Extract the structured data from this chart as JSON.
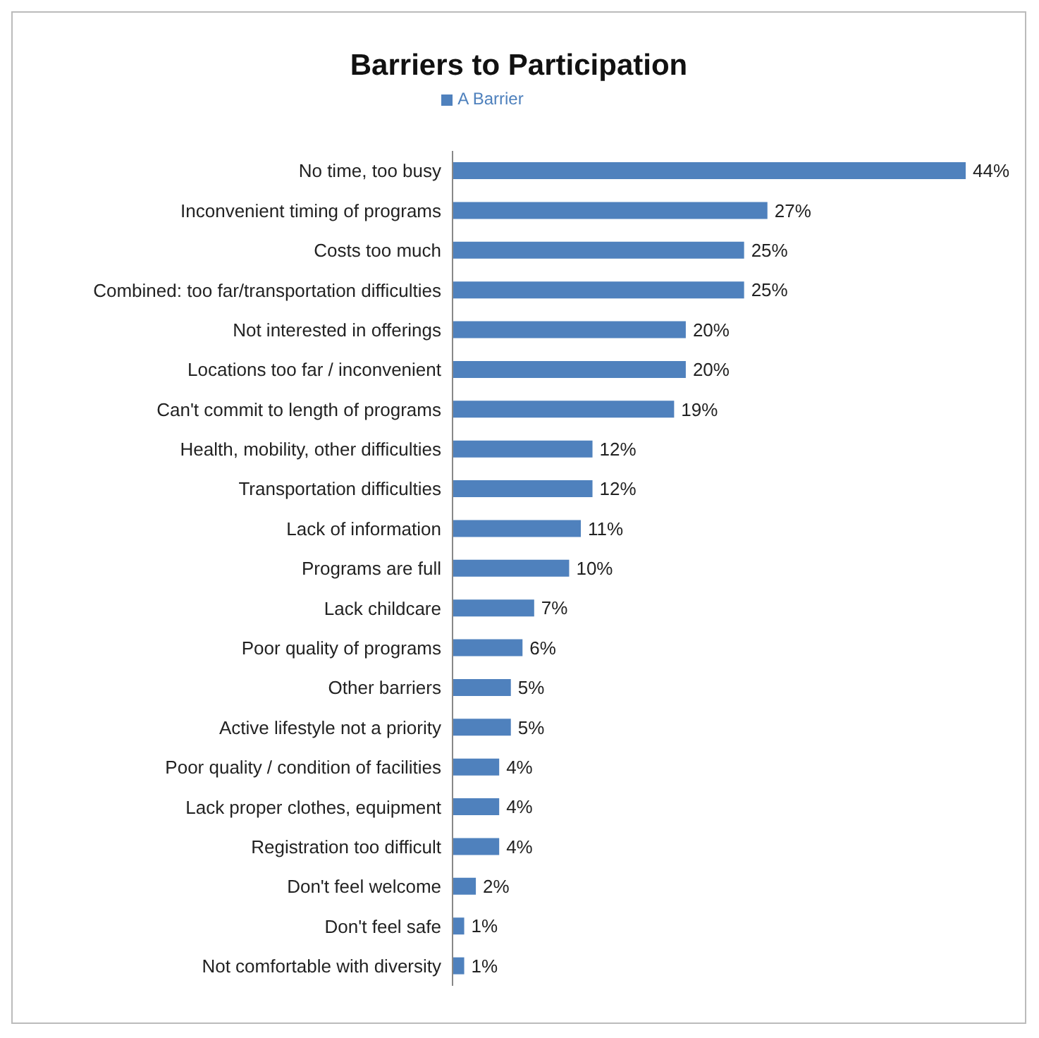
{
  "chart_data": {
    "type": "bar",
    "orientation": "horizontal",
    "title": "Barriers to Participation",
    "legend": "top",
    "categories": [
      "No time, too busy",
      "Inconvenient timing of programs",
      "Costs too much",
      "Combined: too far/transportation difficulties",
      "Not interested in offerings",
      "Locations too far / inconvenient",
      "Can't commit to length of programs",
      "Health, mobility, other difficulties",
      "Transportation difficulties",
      "Lack of information",
      "Programs are full",
      "Lack childcare",
      "Poor quality of programs",
      "Other barriers",
      "Active lifestyle not a priority",
      "Poor quality / condition of facilities",
      "Lack proper clothes, equipment",
      "Registration too difficult",
      "Don't feel welcome",
      "Don't feel safe",
      "Not comfortable with diversity"
    ],
    "series": [
      {
        "name": "A Barrier",
        "color": "#4f81bd",
        "values": [
          44,
          27,
          25,
          25,
          20,
          20,
          19,
          12,
          12,
          11,
          10,
          7,
          6,
          5,
          5,
          4,
          4,
          4,
          2,
          1,
          1
        ],
        "value_labels": [
          "44%",
          "27%",
          "25%",
          "25%",
          "20%",
          "20%",
          "19%",
          "12%",
          "12%",
          "11%",
          "10%",
          "7%",
          "6%",
          "5%",
          "5%",
          "4%",
          "4%",
          "4%",
          "2%",
          "1%",
          "1%"
        ]
      }
    ]
  }
}
